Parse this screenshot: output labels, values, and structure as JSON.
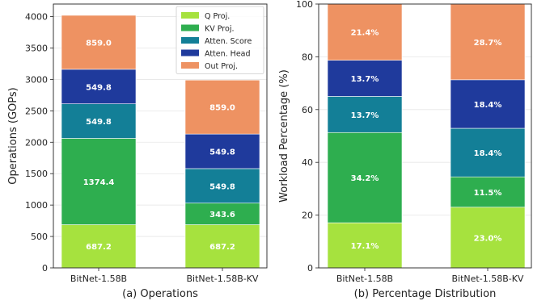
{
  "colors": {
    "Q Proj.": "#a6e23e",
    "KV Proj.": "#2eae4f",
    "Atten. Score": "#137f97",
    "Atten. Head": "#1f3a9c",
    "Out Proj.": "#ee9262"
  },
  "chart_data": [
    {
      "type": "bar",
      "stacked": true,
      "caption": "(a) Operations",
      "xlabel": "",
      "ylabel": "Operations (GOPs)",
      "ylim": [
        0,
        4200
      ],
      "yticks": [
        0,
        500,
        1000,
        1500,
        2000,
        2500,
        3000,
        3500,
        4000
      ],
      "grid": true,
      "legend": "top-right",
      "categories": [
        "BitNet-1.58B",
        "BitNet-1.58B-KV"
      ],
      "series": [
        {
          "name": "Q Proj.",
          "values": [
            687.2,
            687.2
          ],
          "labels": [
            "687.2",
            "687.2"
          ]
        },
        {
          "name": "KV Proj.",
          "values": [
            1374.4,
            343.6
          ],
          "labels": [
            "1374.4",
            "343.6"
          ]
        },
        {
          "name": "Atten. Score",
          "values": [
            549.8,
            549.8
          ],
          "labels": [
            "549.8",
            "549.8"
          ]
        },
        {
          "name": "Atten. Head",
          "values": [
            549.8,
            549.8
          ],
          "labels": [
            "549.8",
            "549.8"
          ]
        },
        {
          "name": "Out Proj.",
          "values": [
            859.0,
            859.0
          ],
          "labels": [
            "859.0",
            "859.0"
          ]
        }
      ]
    },
    {
      "type": "bar",
      "stacked": true,
      "caption": "(b) Percentage Distribution",
      "xlabel": "",
      "ylabel": "Workload Percentage (%)",
      "ylim": [
        0,
        100
      ],
      "yticks": [
        0,
        20,
        40,
        60,
        80,
        100
      ],
      "grid": true,
      "categories": [
        "BitNet-1.58B",
        "BitNet-1.58B-KV"
      ],
      "series": [
        {
          "name": "Q Proj.",
          "values": [
            17.1,
            23.0
          ],
          "labels": [
            "17.1%",
            "23.0%"
          ]
        },
        {
          "name": "KV Proj.",
          "values": [
            34.2,
            11.5
          ],
          "labels": [
            "34.2%",
            "11.5%"
          ]
        },
        {
          "name": "Atten. Score",
          "values": [
            13.7,
            18.4
          ],
          "labels": [
            "13.7%",
            "18.4%"
          ]
        },
        {
          "name": "Atten. Head",
          "values": [
            13.7,
            18.4
          ],
          "labels": [
            "13.7%",
            "18.4%"
          ]
        },
        {
          "name": "Out Proj.",
          "values": [
            21.4,
            28.7
          ],
          "labels": [
            "21.4%",
            "28.7%"
          ]
        }
      ]
    }
  ]
}
